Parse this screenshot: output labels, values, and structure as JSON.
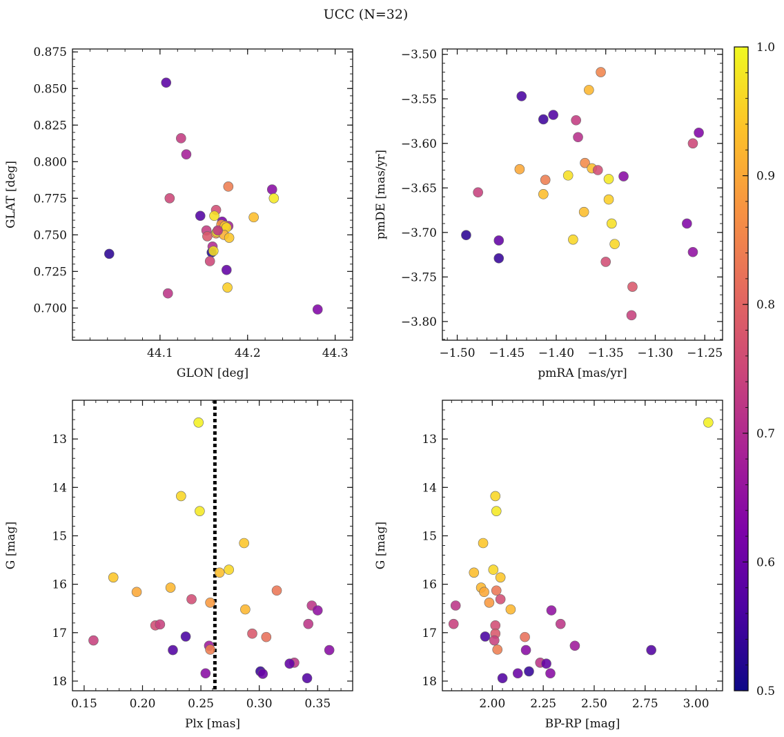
{
  "figure": {
    "title": "UCC (N=32)",
    "colorbar": {
      "min": 0.5,
      "max": 1.0,
      "ticks": [
        0.5,
        0.6,
        0.7,
        0.8,
        0.9,
        1.0
      ],
      "tick_labels": [
        "0.5",
        "0.6",
        "0.7",
        "0.8",
        "0.9",
        "1.0"
      ],
      "colormap": "plasma"
    }
  },
  "chart_data": [
    {
      "type": "scatter",
      "xlabel": "GLON [deg]",
      "ylabel": "GLAT [deg]",
      "xlim": [
        44.0,
        44.32
      ],
      "ylim": [
        0.678,
        0.877
      ],
      "xticks": [
        44.1,
        44.2,
        44.3
      ],
      "xtick_labels": [
        "44.1",
        "44.2",
        "44.3"
      ],
      "yticks": [
        0.7,
        0.725,
        0.75,
        0.775,
        0.8,
        0.825,
        0.85,
        0.875
      ],
      "ytick_labels": [
        "0.700",
        "0.725",
        "0.750",
        "0.775",
        "0.800",
        "0.825",
        "0.850",
        "0.875"
      ],
      "y_inverted": false,
      "points": [
        {
          "x": 44.107,
          "y": 0.854,
          "c": 0.58
        },
        {
          "x": 44.124,
          "y": 0.816,
          "c": 0.73
        },
        {
          "x": 44.13,
          "y": 0.805,
          "c": 0.68
        },
        {
          "x": 44.111,
          "y": 0.775,
          "c": 0.75
        },
        {
          "x": 44.042,
          "y": 0.737,
          "c": 0.53
        },
        {
          "x": 44.109,
          "y": 0.71,
          "c": 0.72
        },
        {
          "x": 44.146,
          "y": 0.763,
          "c": 0.57
        },
        {
          "x": 44.178,
          "y": 0.783,
          "c": 0.84
        },
        {
          "x": 44.228,
          "y": 0.781,
          "c": 0.64
        },
        {
          "x": 44.23,
          "y": 0.775,
          "c": 0.98
        },
        {
          "x": 44.207,
          "y": 0.762,
          "c": 0.93
        },
        {
          "x": 44.164,
          "y": 0.767,
          "c": 0.76
        },
        {
          "x": 44.162,
          "y": 0.763,
          "c": 0.97
        },
        {
          "x": 44.153,
          "y": 0.753,
          "c": 0.73
        },
        {
          "x": 44.154,
          "y": 0.749,
          "c": 0.78
        },
        {
          "x": 44.171,
          "y": 0.759,
          "c": 0.62
        },
        {
          "x": 44.178,
          "y": 0.756,
          "c": 0.68
        },
        {
          "x": 44.17,
          "y": 0.757,
          "c": 0.88
        },
        {
          "x": 44.174,
          "y": 0.756,
          "c": 0.93
        },
        {
          "x": 44.176,
          "y": 0.755,
          "c": 0.96
        },
        {
          "x": 44.164,
          "y": 0.751,
          "c": 0.86
        },
        {
          "x": 44.165,
          "y": 0.752,
          "c": 0.98
        },
        {
          "x": 44.173,
          "y": 0.75,
          "c": 0.91
        },
        {
          "x": 44.179,
          "y": 0.748,
          "c": 0.94
        },
        {
          "x": 44.16,
          "y": 0.742,
          "c": 0.7
        },
        {
          "x": 44.159,
          "y": 0.738,
          "c": 0.52
        },
        {
          "x": 44.161,
          "y": 0.739,
          "c": 0.97
        },
        {
          "x": 44.157,
          "y": 0.732,
          "c": 0.75
        },
        {
          "x": 44.176,
          "y": 0.726,
          "c": 0.59
        },
        {
          "x": 44.177,
          "y": 0.714,
          "c": 0.95
        },
        {
          "x": 44.28,
          "y": 0.699,
          "c": 0.63
        },
        {
          "x": 44.166,
          "y": 0.753,
          "c": 0.72
        }
      ]
    },
    {
      "type": "scatter",
      "xlabel": "pmRA [mas/yr]",
      "ylabel": "pmDE [mas/yr]",
      "xlim": [
        -1.515,
        -1.232
      ],
      "ylim": [
        -3.821,
        -3.494
      ],
      "xticks": [
        -1.5,
        -1.45,
        -1.4,
        -1.35,
        -1.3,
        -1.25
      ],
      "xtick_labels": [
        "−1.50",
        "−1.45",
        "−1.40",
        "−1.35",
        "−1.30",
        "−1.25"
      ],
      "yticks": [
        -3.8,
        -3.75,
        -3.7,
        -3.65,
        -3.6,
        -3.55,
        -3.5
      ],
      "ytick_labels": [
        "−3.80",
        "−3.75",
        "−3.70",
        "−3.65",
        "−3.60",
        "−3.55",
        "−3.50"
      ],
      "y_inverted": false,
      "points": [
        {
          "x": -1.355,
          "y": -3.52,
          "c": 0.85
        },
        {
          "x": -1.367,
          "y": -3.54,
          "c": 0.92
        },
        {
          "x": -1.435,
          "y": -3.547,
          "c": 0.56
        },
        {
          "x": -1.403,
          "y": -3.568,
          "c": 0.57
        },
        {
          "x": -1.413,
          "y": -3.573,
          "c": 0.55
        },
        {
          "x": -1.38,
          "y": -3.574,
          "c": 0.73
        },
        {
          "x": -1.378,
          "y": -3.593,
          "c": 0.71
        },
        {
          "x": -1.256,
          "y": -3.588,
          "c": 0.63
        },
        {
          "x": -1.262,
          "y": -3.6,
          "c": 0.75
        },
        {
          "x": -1.437,
          "y": -3.629,
          "c": 0.9
        },
        {
          "x": -1.371,
          "y": -3.622,
          "c": 0.86
        },
        {
          "x": -1.364,
          "y": -3.628,
          "c": 0.93
        },
        {
          "x": -1.358,
          "y": -3.63,
          "c": 0.76
        },
        {
          "x": -1.388,
          "y": -3.636,
          "c": 0.97
        },
        {
          "x": -1.332,
          "y": -3.637,
          "c": 0.64
        },
        {
          "x": -1.347,
          "y": -3.64,
          "c": 0.98
        },
        {
          "x": -1.411,
          "y": -3.641,
          "c": 0.84
        },
        {
          "x": -1.479,
          "y": -3.655,
          "c": 0.74
        },
        {
          "x": -1.413,
          "y": -3.657,
          "c": 0.93
        },
        {
          "x": -1.347,
          "y": -3.663,
          "c": 0.95
        },
        {
          "x": -1.372,
          "y": -3.677,
          "c": 0.93
        },
        {
          "x": -1.344,
          "y": -3.69,
          "c": 0.97
        },
        {
          "x": -1.268,
          "y": -3.69,
          "c": 0.63
        },
        {
          "x": -1.491,
          "y": -3.703,
          "c": 0.53
        },
        {
          "x": -1.383,
          "y": -3.708,
          "c": 0.96
        },
        {
          "x": -1.458,
          "y": -3.709,
          "c": 0.59
        },
        {
          "x": -1.341,
          "y": -3.713,
          "c": 0.96
        },
        {
          "x": -1.262,
          "y": -3.722,
          "c": 0.65
        },
        {
          "x": -1.458,
          "y": -3.729,
          "c": 0.54
        },
        {
          "x": -1.35,
          "y": -3.733,
          "c": 0.76
        },
        {
          "x": -1.323,
          "y": -3.761,
          "c": 0.78
        },
        {
          "x": -1.324,
          "y": -3.793,
          "c": 0.74
        }
      ]
    },
    {
      "type": "scatter",
      "xlabel": "Plx [mas]",
      "ylabel": "G [mag]",
      "xlim": [
        0.14,
        0.38
      ],
      "ylim": [
        12.2,
        18.2
      ],
      "xticks": [
        0.15,
        0.2,
        0.25,
        0.3,
        0.35
      ],
      "xtick_labels": [
        "0.15",
        "0.20",
        "0.25",
        "0.30",
        "0.35"
      ],
      "yticks": [
        13,
        14,
        15,
        16,
        17,
        18
      ],
      "ytick_labels": [
        "13",
        "14",
        "15",
        "16",
        "17",
        "18"
      ],
      "y_inverted": true,
      "vline": {
        "x": 0.262,
        "style": "dotted"
      },
      "points": [
        {
          "x": 0.248,
          "y": 12.66,
          "c": 0.99
        },
        {
          "x": 0.233,
          "y": 14.18,
          "c": 0.96
        },
        {
          "x": 0.249,
          "y": 14.49,
          "c": 0.98
        },
        {
          "x": 0.287,
          "y": 15.15,
          "c": 0.94
        },
        {
          "x": 0.274,
          "y": 15.7,
          "c": 0.96
        },
        {
          "x": 0.266,
          "y": 15.76,
          "c": 0.93
        },
        {
          "x": 0.175,
          "y": 15.86,
          "c": 0.94
        },
        {
          "x": 0.224,
          "y": 16.07,
          "c": 0.92
        },
        {
          "x": 0.315,
          "y": 16.13,
          "c": 0.83
        },
        {
          "x": 0.195,
          "y": 16.16,
          "c": 0.9
        },
        {
          "x": 0.242,
          "y": 16.31,
          "c": 0.76
        },
        {
          "x": 0.258,
          "y": 16.38,
          "c": 0.88
        },
        {
          "x": 0.345,
          "y": 16.44,
          "c": 0.72
        },
        {
          "x": 0.288,
          "y": 16.52,
          "c": 0.92
        },
        {
          "x": 0.35,
          "y": 16.54,
          "c": 0.65
        },
        {
          "x": 0.342,
          "y": 16.82,
          "c": 0.72
        },
        {
          "x": 0.211,
          "y": 16.85,
          "c": 0.76
        },
        {
          "x": 0.215,
          "y": 16.83,
          "c": 0.74
        },
        {
          "x": 0.294,
          "y": 17.02,
          "c": 0.78
        },
        {
          "x": 0.306,
          "y": 17.09,
          "c": 0.82
        },
        {
          "x": 0.237,
          "y": 17.08,
          "c": 0.56
        },
        {
          "x": 0.158,
          "y": 17.16,
          "c": 0.74
        },
        {
          "x": 0.257,
          "y": 17.27,
          "c": 0.67
        },
        {
          "x": 0.258,
          "y": 17.35,
          "c": 0.84
        },
        {
          "x": 0.226,
          "y": 17.36,
          "c": 0.57
        },
        {
          "x": 0.36,
          "y": 17.36,
          "c": 0.64
        },
        {
          "x": 0.33,
          "y": 17.62,
          "c": 0.72
        },
        {
          "x": 0.326,
          "y": 17.64,
          "c": 0.59
        },
        {
          "x": 0.254,
          "y": 17.84,
          "c": 0.64
        },
        {
          "x": 0.301,
          "y": 17.8,
          "c": 0.54
        },
        {
          "x": 0.303,
          "y": 17.85,
          "c": 0.6
        },
        {
          "x": 0.341,
          "y": 17.94,
          "c": 0.57
        }
      ]
    },
    {
      "type": "scatter",
      "xlabel": "BP-RP [mag]",
      "ylabel": "G [mag]",
      "xlim": [
        1.755,
        3.13
      ],
      "ylim": [
        12.2,
        18.2
      ],
      "xticks": [
        2.0,
        2.25,
        2.5,
        2.75,
        3.0
      ],
      "xtick_labels": [
        "2.00",
        "2.25",
        "2.50",
        "2.75",
        "3.00"
      ],
      "yticks": [
        13,
        14,
        15,
        16,
        17,
        18
      ],
      "ytick_labels": [
        "13",
        "14",
        "15",
        "16",
        "17",
        "18"
      ],
      "y_inverted": true,
      "points": [
        {
          "x": 3.06,
          "y": 12.66,
          "c": 0.99
        },
        {
          "x": 2.015,
          "y": 14.18,
          "c": 0.96
        },
        {
          "x": 2.02,
          "y": 14.49,
          "c": 0.98
        },
        {
          "x": 1.955,
          "y": 15.15,
          "c": 0.94
        },
        {
          "x": 2.005,
          "y": 15.7,
          "c": 0.96
        },
        {
          "x": 1.91,
          "y": 15.76,
          "c": 0.93
        },
        {
          "x": 2.04,
          "y": 15.86,
          "c": 0.94
        },
        {
          "x": 1.945,
          "y": 16.07,
          "c": 0.92
        },
        {
          "x": 2.02,
          "y": 16.13,
          "c": 0.83
        },
        {
          "x": 1.96,
          "y": 16.16,
          "c": 0.9
        },
        {
          "x": 2.04,
          "y": 16.31,
          "c": 0.76
        },
        {
          "x": 1.985,
          "y": 16.38,
          "c": 0.88
        },
        {
          "x": 1.82,
          "y": 16.44,
          "c": 0.72
        },
        {
          "x": 2.09,
          "y": 16.52,
          "c": 0.92
        },
        {
          "x": 2.29,
          "y": 16.54,
          "c": 0.65
        },
        {
          "x": 2.335,
          "y": 16.82,
          "c": 0.72
        },
        {
          "x": 2.015,
          "y": 16.85,
          "c": 0.76
        },
        {
          "x": 1.81,
          "y": 16.82,
          "c": 0.74
        },
        {
          "x": 2.015,
          "y": 17.02,
          "c": 0.78
        },
        {
          "x": 2.16,
          "y": 17.09,
          "c": 0.82
        },
        {
          "x": 1.965,
          "y": 17.08,
          "c": 0.56
        },
        {
          "x": 2.01,
          "y": 17.16,
          "c": 0.74
        },
        {
          "x": 2.405,
          "y": 17.27,
          "c": 0.67
        },
        {
          "x": 2.025,
          "y": 17.35,
          "c": 0.84
        },
        {
          "x": 2.78,
          "y": 17.36,
          "c": 0.57
        },
        {
          "x": 2.165,
          "y": 17.36,
          "c": 0.64
        },
        {
          "x": 2.235,
          "y": 17.62,
          "c": 0.72
        },
        {
          "x": 2.265,
          "y": 17.64,
          "c": 0.59
        },
        {
          "x": 2.285,
          "y": 17.84,
          "c": 0.64
        },
        {
          "x": 2.18,
          "y": 17.8,
          "c": 0.54
        },
        {
          "x": 2.125,
          "y": 17.84,
          "c": 0.6
        },
        {
          "x": 2.05,
          "y": 17.94,
          "c": 0.57
        }
      ]
    }
  ]
}
